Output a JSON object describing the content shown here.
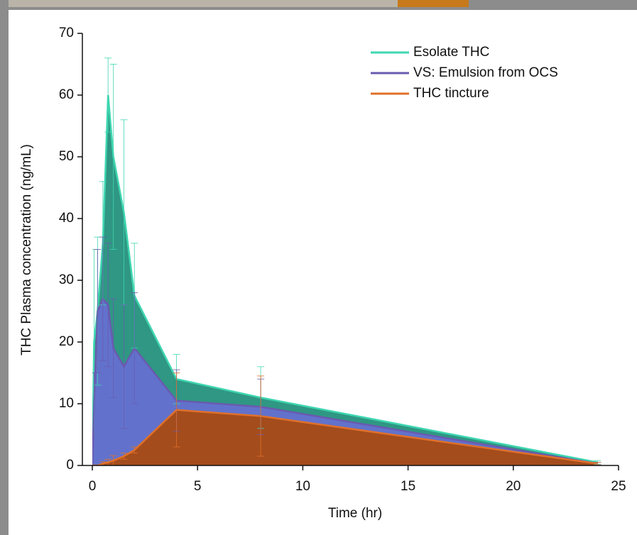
{
  "chart_data": {
    "type": "area",
    "x_label": "Time (hr)",
    "y_label": "THC Plasma concentration (ng/mL)",
    "x": [
      0,
      0.083,
      0.25,
      0.5,
      0.75,
      1,
      1.5,
      2,
      4,
      8,
      24
    ],
    "series": [
      {
        "name": "Esolate THC",
        "color": "#3ed6b0",
        "fill": "#24917c",
        "values": [
          0,
          20,
          25,
          36,
          60,
          50,
          41,
          27.5,
          14,
          11,
          0.5
        ],
        "errors": [
          0,
          15,
          12,
          10,
          6,
          15,
          15,
          8.5,
          4,
          5,
          0.3
        ]
      },
      {
        "name": "VS: Emulsion from OCS",
        "color": "#6a5ab0",
        "fill": "#6570d0",
        "values": [
          0,
          10,
          25,
          27,
          26,
          19,
          16,
          19,
          10.5,
          9.5,
          0.3
        ],
        "errors": [
          0,
          5,
          10,
          10,
          10,
          8,
          10,
          9,
          5,
          4.5,
          0.2
        ]
      },
      {
        "name": "THC tincture",
        "color": "#e0702a",
        "fill": "#a84a12",
        "values": [
          0,
          0,
          0,
          0.3,
          0.5,
          0.8,
          1.5,
          2.5,
          9,
          8,
          0.3
        ],
        "errors": [
          0,
          0,
          0,
          0.3,
          0.5,
          0.8,
          0.5,
          0.5,
          6,
          6.5,
          0.2
        ]
      }
    ],
    "xlim": [
      0,
      25
    ],
    "xticks": [
      0,
      5,
      10,
      15,
      20,
      25
    ],
    "ylim": [
      0,
      70
    ],
    "yticks": [
      0,
      10,
      20,
      30,
      40,
      50,
      60,
      70
    ],
    "grid": false,
    "legend": "top-right"
  }
}
